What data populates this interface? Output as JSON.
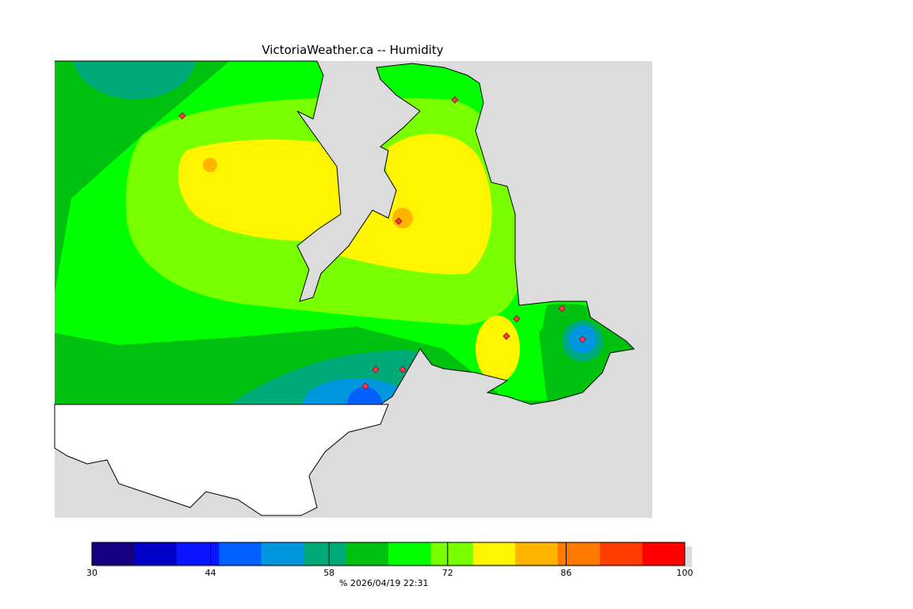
{
  "title": "VictoriaWeather.ca  --  Humidity",
  "colorbar": {
    "min": 30,
    "max": 100,
    "step": 5,
    "colors": [
      "#140080",
      "#0000c8",
      "#0a14ff",
      "#0060ff",
      "#0096e0",
      "#00aa78",
      "#00c010",
      "#00ff00",
      "#78ff00",
      "#fff500",
      "#ffb400",
      "#ff7800",
      "#ff3c00",
      "#ff0000"
    ],
    "ticks": [
      "30",
      "44",
      "58",
      "72",
      "86",
      "100"
    ],
    "unit_and_time": "%  2026/04/19 22:31"
  },
  "colors": {
    "sea": "#dcdcdc",
    "land_outside": "#ffffff",
    "station": "#ff3c3c"
  }
}
